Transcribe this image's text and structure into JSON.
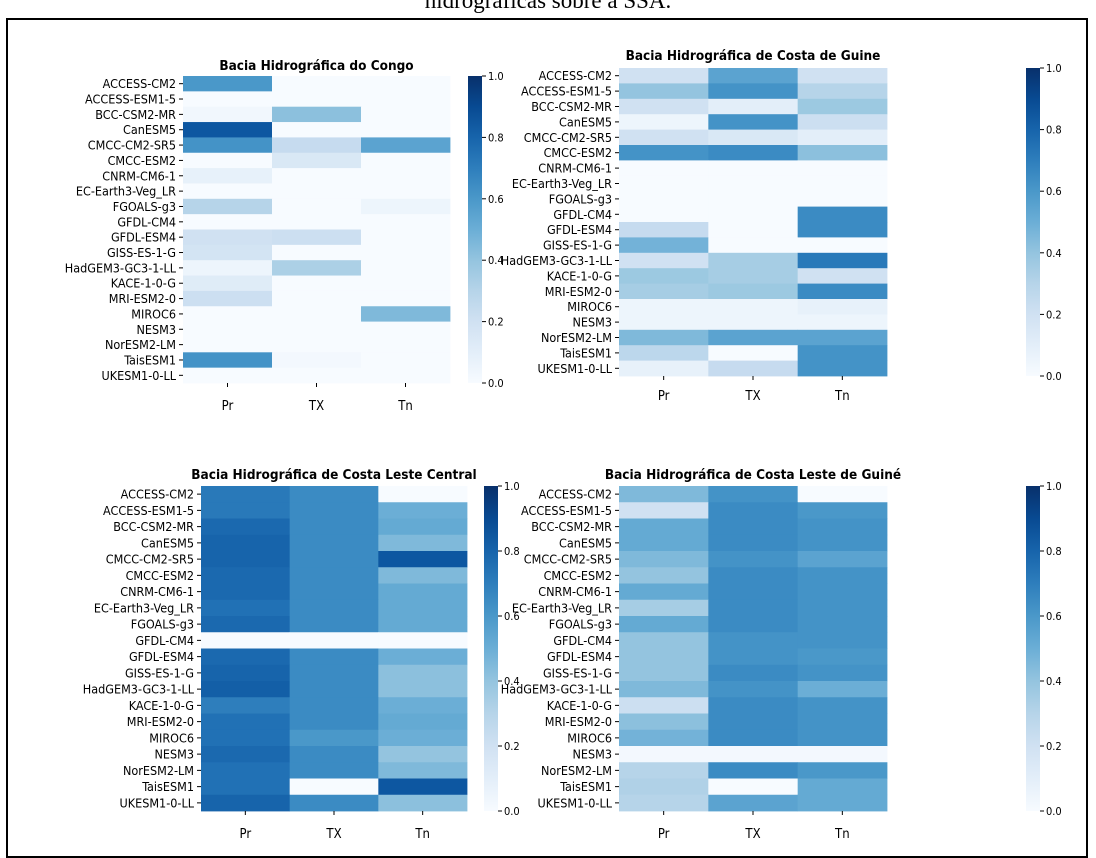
{
  "caption": "hidrográficas sobre a SSA.",
  "colors": {
    "low": "#f7fbff",
    "high": "#08306b",
    "border": "#000000"
  },
  "colorbar": {
    "ticks": [
      "0.0",
      "0.2",
      "0.4",
      "0.6",
      "0.8",
      "1.0"
    ]
  },
  "chart_data": [
    {
      "type": "heatmap",
      "title": "Bacia Hidrográfica do Congo",
      "columns": [
        "Pr",
        "TX",
        "Tn"
      ],
      "rows": [
        "ACCESS-CM2",
        "ACCESS-ESM1-5",
        "BCC-CSM2-MR",
        "CanESM5",
        "CMCC-CM2-SR5",
        "CMCC-ESM2",
        "CNRM-CM6-1",
        "EC-Earth3-Veg_LR",
        "FGOALS-g3",
        "GFDL-CM4",
        "GFDL-ESM4",
        "GISS-ES-1-G",
        "HadGEM3-GC3-1-LL",
        "KACE-1-0-G",
        "MRI-ESM2-0",
        "MIROC6",
        "NESM3",
        "NorESM2-LM",
        "TaisESM1",
        "UKESM1-0-LL"
      ],
      "values": [
        [
          0.6,
          0,
          0
        ],
        [
          0,
          0,
          0
        ],
        [
          0.03,
          0.42,
          0
        ],
        [
          0.85,
          0,
          0
        ],
        [
          0.62,
          0.25,
          0.55
        ],
        [
          0,
          0.15,
          0
        ],
        [
          0.08,
          0,
          0
        ],
        [
          0,
          0,
          0
        ],
        [
          0.3,
          0,
          0.05
        ],
        [
          0,
          0,
          0
        ],
        [
          0.2,
          0.22,
          0
        ],
        [
          0.18,
          0,
          0
        ],
        [
          0.05,
          0.33,
          0
        ],
        [
          0.12,
          0,
          0
        ],
        [
          0.22,
          0,
          0
        ],
        [
          0,
          0,
          0.45
        ],
        [
          0,
          0,
          0
        ],
        [
          0,
          0,
          0
        ],
        [
          0.62,
          0.02,
          0
        ],
        [
          0,
          0,
          0
        ]
      ],
      "vmin": 0,
      "vmax": 1,
      "colormap": "Blues"
    },
    {
      "type": "heatmap",
      "title": "Bacia Hidrográfica de Costa de Guine",
      "columns": [
        "Pr",
        "TX",
        "Tn"
      ],
      "rows": [
        "ACCESS-CM2",
        "ACCESS-ESM1-5",
        "BCC-CSM2-MR",
        "CanESM5",
        "CMCC-CM2-SR5",
        "CMCC-ESM2",
        "CNRM-CM6-1",
        "EC-Earth3-Veg_LR",
        "FGOALS-g3",
        "GFDL-CM4",
        "GFDL-ESM4",
        "GISS-ES-1-G",
        "HadGEM3-GC3-1-LL",
        "KACE-1-0-G",
        "MRI-ESM2-0",
        "MIROC6",
        "NESM3",
        "NorESM2-LM",
        "TaisESM1",
        "UKESM1-0-LL"
      ],
      "values": [
        [
          0.2,
          0.55,
          0.2
        ],
        [
          0.4,
          0.62,
          0.3
        ],
        [
          0.2,
          0.1,
          0.38
        ],
        [
          0.05,
          0.62,
          0.22
        ],
        [
          0.2,
          0.15,
          0.1
        ],
        [
          0.62,
          0.65,
          0.42
        ],
        [
          0,
          0,
          0
        ],
        [
          0,
          0,
          0
        ],
        [
          0,
          0,
          0
        ],
        [
          0,
          0,
          0.65
        ],
        [
          0.25,
          0,
          0.65
        ],
        [
          0.48,
          0,
          0
        ],
        [
          0.2,
          0.35,
          0.72
        ],
        [
          0.38,
          0.35,
          0.2
        ],
        [
          0.35,
          0.38,
          0.65
        ],
        [
          0.05,
          0.05,
          0.08
        ],
        [
          0.05,
          0.05,
          0.05
        ],
        [
          0.45,
          0.55,
          0.55
        ],
        [
          0.28,
          0,
          0.62
        ],
        [
          0.08,
          0.25,
          0.62
        ]
      ],
      "vmin": 0,
      "vmax": 1,
      "colormap": "Blues"
    },
    {
      "type": "heatmap",
      "title": "Bacia Hidrográfica de Costa Leste Central",
      "columns": [
        "Pr",
        "TX",
        "Tn"
      ],
      "rows": [
        "ACCESS-CM2",
        "ACCESS-ESM1-5",
        "BCC-CSM2-MR",
        "CanESM5",
        "CMCC-CM2-SR5",
        "CMCC-ESM2",
        "CNRM-CM6-1",
        "EC-Earth3-Veg_LR",
        "FGOALS-g3",
        "GFDL-CM4",
        "GFDL-ESM4",
        "GISS-ES-1-G",
        "HadGEM3-GC3-1-LL",
        "KACE-1-0-G",
        "MRI-ESM2-0",
        "MIROC6",
        "NESM3",
        "NorESM2-LM",
        "TaisESM1",
        "UKESM1-0-LL"
      ],
      "values": [
        [
          0.72,
          0.65,
          0
        ],
        [
          0.72,
          0.65,
          0.5
        ],
        [
          0.78,
          0.65,
          0.52
        ],
        [
          0.8,
          0.65,
          0.45
        ],
        [
          0.8,
          0.65,
          0.85
        ],
        [
          0.78,
          0.65,
          0.45
        ],
        [
          0.78,
          0.65,
          0.52
        ],
        [
          0.75,
          0.65,
          0.52
        ],
        [
          0.78,
          0.65,
          0.52
        ],
        [
          0,
          0,
          0
        ],
        [
          0.78,
          0.65,
          0.5
        ],
        [
          0.8,
          0.65,
          0.42
        ],
        [
          0.82,
          0.65,
          0.42
        ],
        [
          0.7,
          0.65,
          0.5
        ],
        [
          0.75,
          0.65,
          0.52
        ],
        [
          0.75,
          0.6,
          0.5
        ],
        [
          0.78,
          0.65,
          0.4
        ],
        [
          0.75,
          0.65,
          0.45
        ],
        [
          0.75,
          0,
          0.85
        ],
        [
          0.8,
          0.65,
          0.42
        ]
      ],
      "vmin": 0,
      "vmax": 1,
      "colormap": "Blues"
    },
    {
      "type": "heatmap",
      "title": "Bacia Hidrográfica de Costa Leste de Guiné",
      "columns": [
        "Pr",
        "TX",
        "Tn"
      ],
      "rows": [
        "ACCESS-CM2",
        "ACCESS-ESM1-5",
        "BCC-CSM2-MR",
        "CanESM5",
        "CMCC-CM2-SR5",
        "CMCC-ESM2",
        "CNRM-CM6-1",
        "EC-Earth3-Veg_LR",
        "FGOALS-g3",
        "GFDL-CM4",
        "GFDL-ESM4",
        "GISS-ES-1-G",
        "HadGEM3-GC3-1-LL",
        "KACE-1-0-G",
        "MRI-ESM2-0",
        "MIROC6",
        "NESM3",
        "NorESM2-LM",
        "TaisESM1",
        "UKESM1-0-LL"
      ],
      "values": [
        [
          0.45,
          0.62,
          0
        ],
        [
          0.2,
          0.65,
          0.6
        ],
        [
          0.52,
          0.65,
          0.62
        ],
        [
          0.52,
          0.65,
          0.62
        ],
        [
          0.45,
          0.62,
          0.55
        ],
        [
          0.4,
          0.65,
          0.62
        ],
        [
          0.52,
          0.65,
          0.62
        ],
        [
          0.35,
          0.65,
          0.62
        ],
        [
          0.52,
          0.65,
          0.62
        ],
        [
          0.4,
          0.62,
          0.62
        ],
        [
          0.4,
          0.62,
          0.6
        ],
        [
          0.4,
          0.65,
          0.62
        ],
        [
          0.45,
          0.62,
          0.5
        ],
        [
          0.22,
          0.65,
          0.62
        ],
        [
          0.42,
          0.65,
          0.62
        ],
        [
          0.48,
          0.65,
          0.62
        ],
        [
          0.02,
          0.02,
          0.02
        ],
        [
          0.3,
          0.65,
          0.6
        ],
        [
          0.32,
          0,
          0.52
        ],
        [
          0.3,
          0.55,
          0.52
        ]
      ],
      "vmin": 0,
      "vmax": 1,
      "colormap": "Blues"
    }
  ]
}
